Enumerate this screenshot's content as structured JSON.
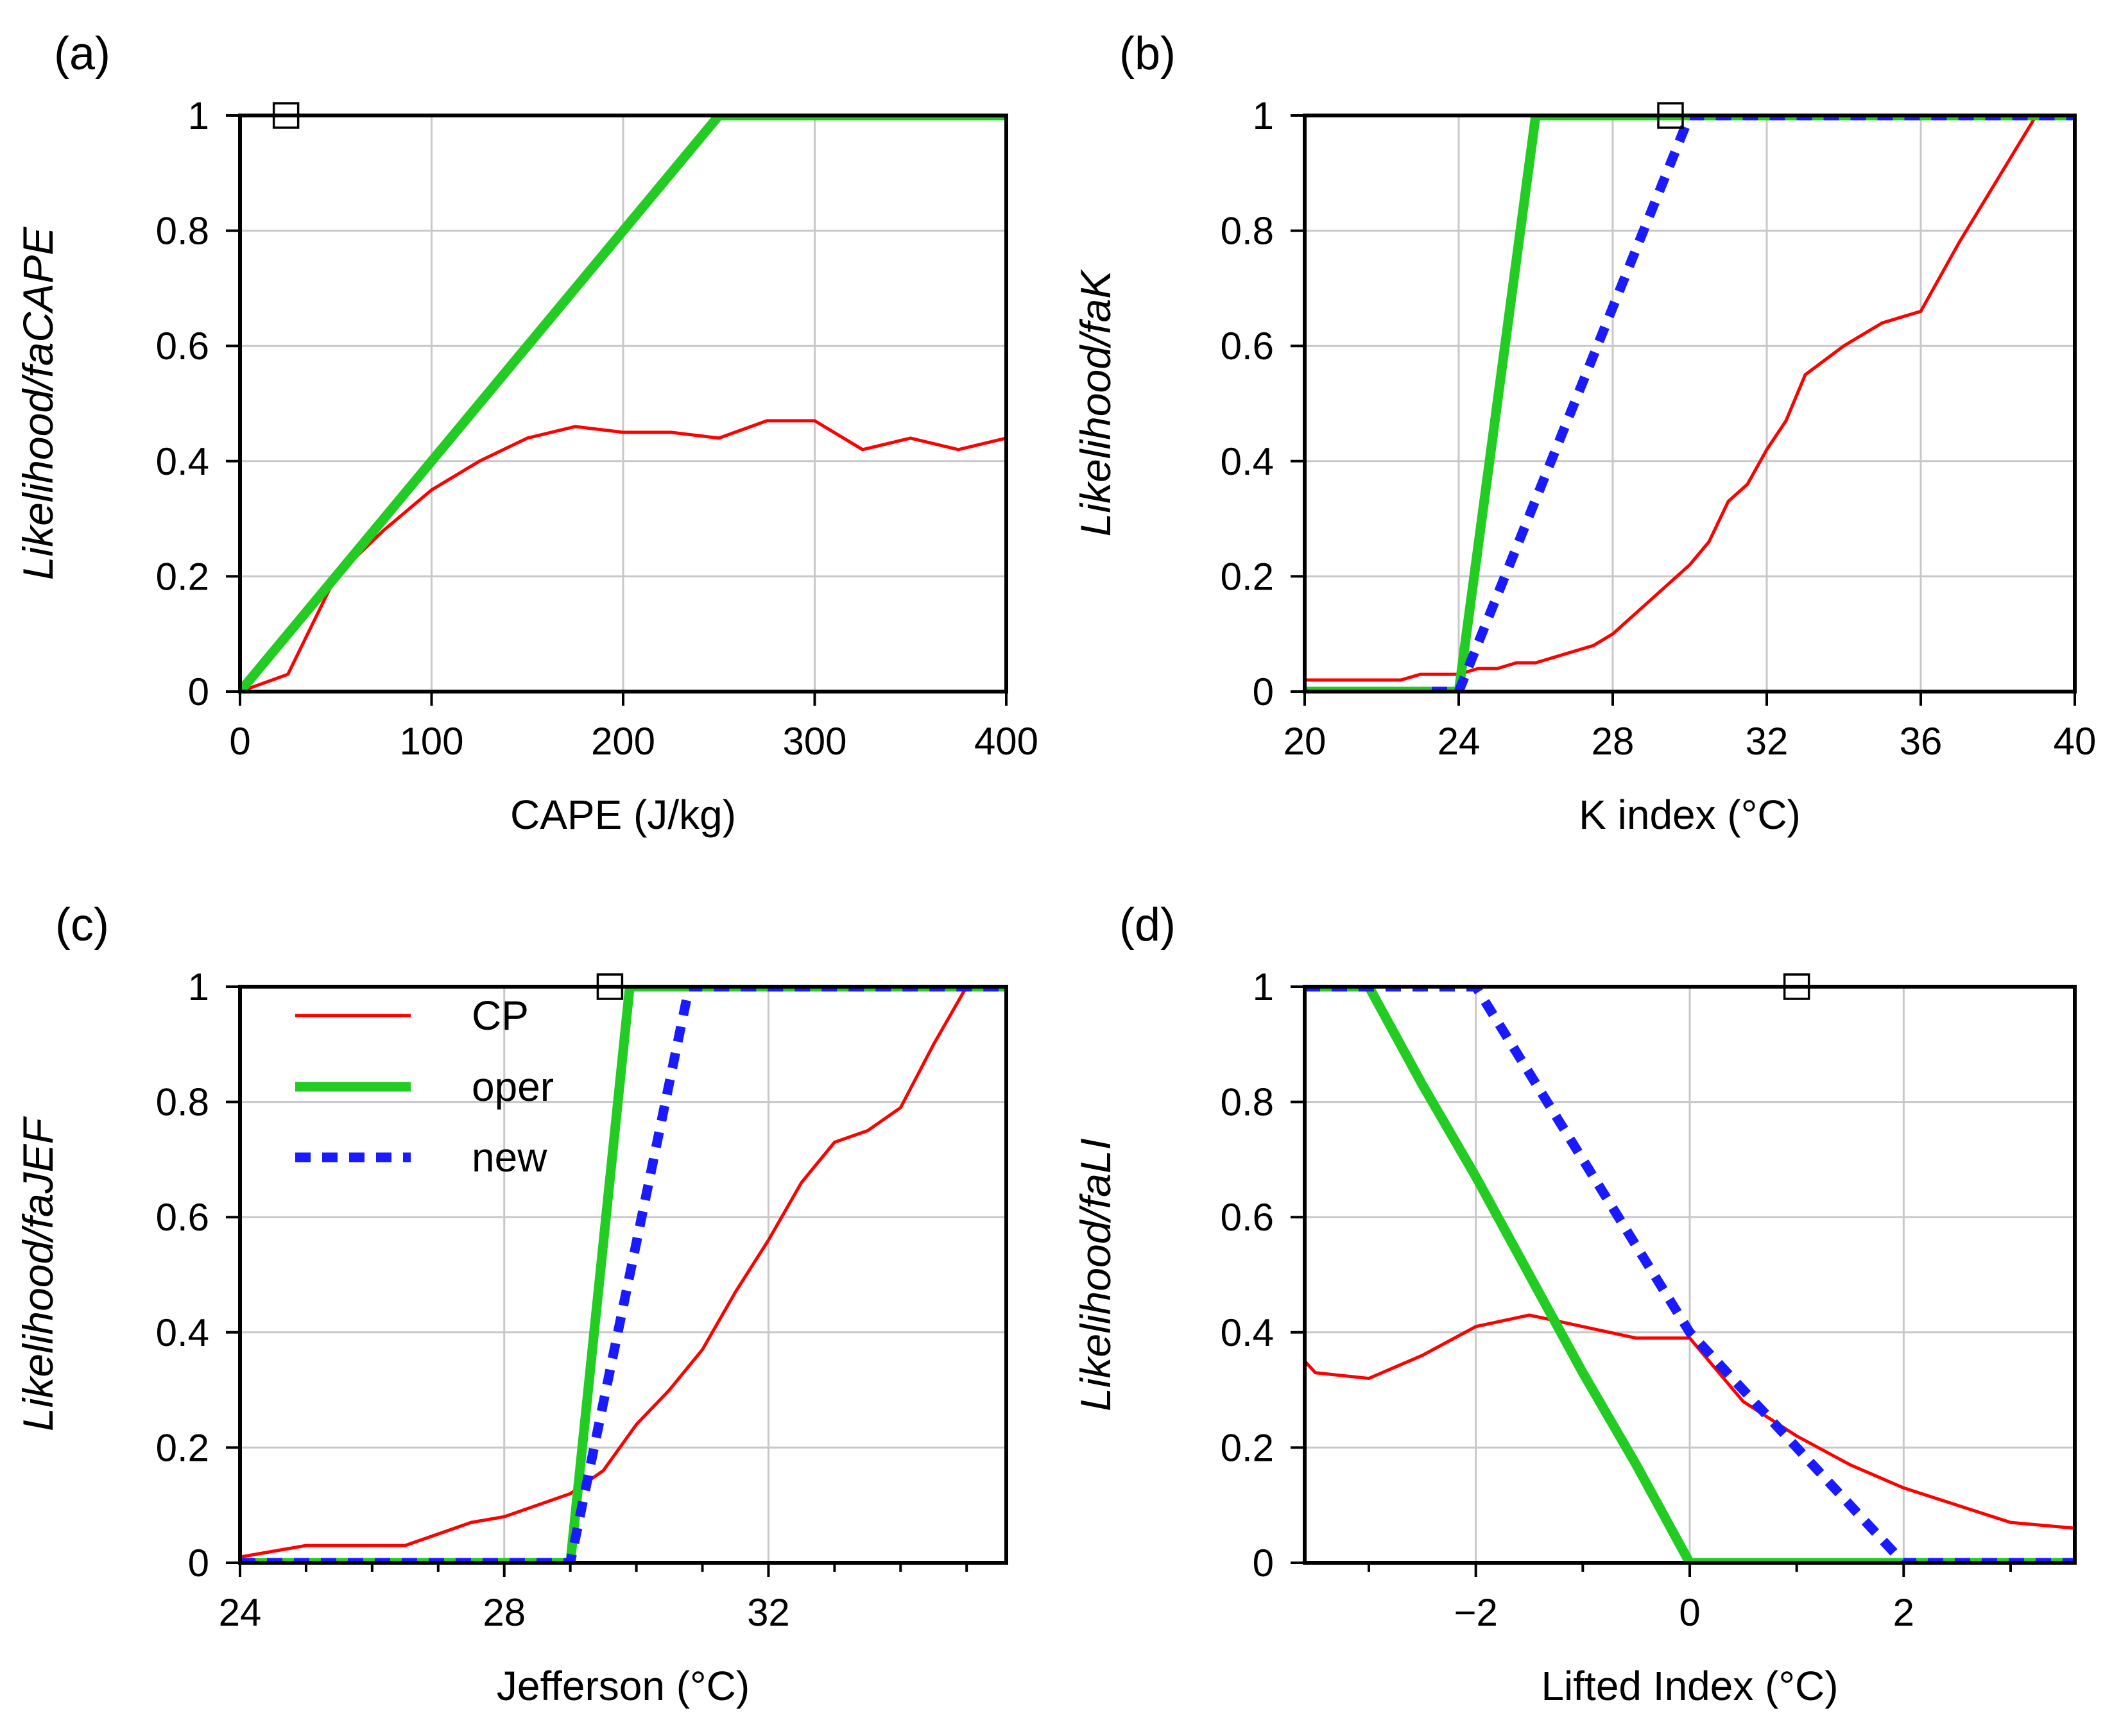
{
  "colors": {
    "cp": "#ff0000",
    "oper": "#22cc22",
    "new": "#1a1aff",
    "grid": "#c8c8c8",
    "axis": "#000000"
  },
  "legend": {
    "entries": [
      {
        "key": "cp",
        "label": "CP"
      },
      {
        "key": "oper",
        "label": "oper"
      },
      {
        "key": "new",
        "label": "new"
      }
    ]
  },
  "chart_data": [
    {
      "panel": "(a)",
      "type": "line",
      "xlabel": "CAPE (J/kg)",
      "ylabel": "Likelihood/faCAPE",
      "xlim": [
        0,
        400
      ],
      "ylim": [
        0,
        1
      ],
      "xticks": [
        0,
        100,
        200,
        300,
        400
      ],
      "xtick_labels": [
        "0",
        "100",
        "200",
        "300",
        "400"
      ],
      "xminor": [],
      "yticks": [
        0,
        0.2,
        0.4,
        0.6,
        0.8,
        1
      ],
      "ytick_labels": [
        "0",
        "0.2",
        "0.4",
        "0.6",
        "0.8",
        "1"
      ],
      "marker": {
        "x": 24,
        "y": 1
      },
      "series": [
        {
          "name": "CP",
          "key": "cp",
          "x": [
            0,
            25,
            50,
            75,
            100,
            125,
            150,
            175,
            200,
            225,
            250,
            275,
            300,
            325,
            350,
            375,
            400
          ],
          "y": [
            0,
            0.03,
            0.2,
            0.28,
            0.35,
            0.4,
            0.44,
            0.46,
            0.45,
            0.45,
            0.44,
            0.47,
            0.47,
            0.42,
            0.44,
            0.42,
            0.44
          ]
        },
        {
          "name": "oper",
          "key": "oper",
          "x": [
            0,
            250,
            400
          ],
          "y": [
            0,
            1,
            1
          ]
        }
      ]
    },
    {
      "panel": "(b)",
      "type": "line",
      "xlabel": "K index (°C)",
      "ylabel": "Likelihood/faK",
      "xlim": [
        20,
        40
      ],
      "ylim": [
        0,
        1
      ],
      "xticks": [
        20,
        24,
        28,
        32,
        36,
        40
      ],
      "xtick_labels": [
        "20",
        "24",
        "28",
        "32",
        "36",
        "40"
      ],
      "xminor": [],
      "yticks": [
        0,
        0.2,
        0.4,
        0.6,
        0.8,
        1
      ],
      "ytick_labels": [
        "0",
        "0.2",
        "0.4",
        "0.6",
        "0.8",
        "1"
      ],
      "marker": {
        "x": 29.5,
        "y": 1
      },
      "series": [
        {
          "name": "CP",
          "key": "cp",
          "x": [
            20,
            22.5,
            23,
            24,
            24.5,
            25,
            25.5,
            26,
            27,
            27.5,
            28,
            29,
            30,
            30.5,
            31,
            31.5,
            32,
            32.5,
            33,
            34,
            35,
            36,
            37,
            39
          ],
          "y": [
            0.02,
            0.02,
            0.03,
            0.03,
            0.04,
            0.04,
            0.05,
            0.05,
            0.07,
            0.08,
            0.1,
            0.16,
            0.22,
            0.26,
            0.33,
            0.36,
            0.42,
            0.47,
            0.55,
            0.6,
            0.64,
            0.66,
            0.78,
            1
          ]
        },
        {
          "name": "oper",
          "key": "oper",
          "x": [
            20,
            24,
            26,
            40
          ],
          "y": [
            0,
            0,
            1,
            1
          ]
        },
        {
          "name": "new",
          "key": "new",
          "x": [
            23.3,
            24,
            30,
            40
          ],
          "y": [
            0,
            0,
            1,
            1
          ]
        }
      ]
    },
    {
      "panel": "(c)",
      "type": "line",
      "xlabel": "Jefferson (°C)",
      "ylabel": "Likelihood/faJEF",
      "xlim": [
        24,
        35.6
      ],
      "ylim": [
        0,
        1
      ],
      "xticks": [
        24,
        28,
        32
      ],
      "xtick_labels": [
        "24",
        "28",
        "32"
      ],
      "xminor": [
        25,
        26,
        27,
        29,
        30,
        31,
        33,
        34,
        35
      ],
      "yticks": [
        0,
        0.2,
        0.4,
        0.6,
        0.8,
        1
      ],
      "ytick_labels": [
        "0",
        "0.2",
        "0.4",
        "0.6",
        "0.8",
        "1"
      ],
      "marker": {
        "x": 29.6,
        "y": 1
      },
      "legend_position": "upper-left",
      "series": [
        {
          "name": "CP",
          "key": "cp",
          "x": [
            24,
            25,
            26,
            26.5,
            27,
            27.5,
            28,
            29,
            29.5,
            30,
            30.5,
            31,
            31.5,
            32,
            32.5,
            33,
            33.5,
            34,
            34.5,
            35,
            35.5
          ],
          "y": [
            0.01,
            0.03,
            0.03,
            0.03,
            0.05,
            0.07,
            0.08,
            0.12,
            0.16,
            0.24,
            0.3,
            0.37,
            0.47,
            0.56,
            0.66,
            0.73,
            0.75,
            0.79,
            0.9,
            1,
            1
          ]
        },
        {
          "name": "oper",
          "key": "oper",
          "x": [
            24,
            29,
            29.9,
            35.6
          ],
          "y": [
            0,
            0,
            1,
            1
          ]
        },
        {
          "name": "new",
          "key": "new",
          "x": [
            24,
            29,
            30.8,
            35.6
          ],
          "y": [
            0,
            0,
            1,
            1
          ]
        }
      ]
    },
    {
      "panel": "(d)",
      "type": "line",
      "xlabel": "Lifted Index (°C)",
      "ylabel": "Likelihood/faLI",
      "xlim": [
        -3.6,
        3.6
      ],
      "ylim": [
        0,
        1
      ],
      "xticks": [
        -2,
        0,
        2
      ],
      "xtick_labels": [
        "−2",
        "0",
        "2"
      ],
      "xminor": [
        -3,
        -1,
        1,
        3
      ],
      "yticks": [
        0,
        0.2,
        0.4,
        0.6,
        0.8,
        1
      ],
      "ytick_labels": [
        "0",
        "0.2",
        "0.4",
        "0.6",
        "0.8",
        "1"
      ],
      "marker": {
        "x": 1,
        "y": 1
      },
      "series": [
        {
          "name": "CP",
          "key": "cp",
          "x": [
            -3.6,
            -3.5,
            -3,
            -2.5,
            -2,
            -1.5,
            -1,
            -0.5,
            0,
            0.5,
            1,
            1.5,
            2,
            2.5,
            3,
            3.6
          ],
          "y": [
            0.35,
            0.33,
            0.32,
            0.36,
            0.41,
            0.43,
            0.41,
            0.39,
            0.39,
            0.28,
            0.22,
            0.17,
            0.13,
            0.1,
            0.07,
            0.06
          ]
        },
        {
          "name": "oper",
          "key": "oper",
          "x": [
            -3.6,
            -3,
            -2.5,
            -2,
            -1.5,
            -1,
            -0.5,
            0,
            3.6
          ],
          "y": [
            1,
            1,
            0.83,
            0.67,
            0.5,
            0.33,
            0.17,
            0,
            0
          ]
        },
        {
          "name": "new",
          "key": "new",
          "x": [
            -3.6,
            -2,
            0,
            2,
            3.6
          ],
          "y": [
            1,
            1,
            0.4,
            0,
            0
          ]
        }
      ]
    }
  ]
}
